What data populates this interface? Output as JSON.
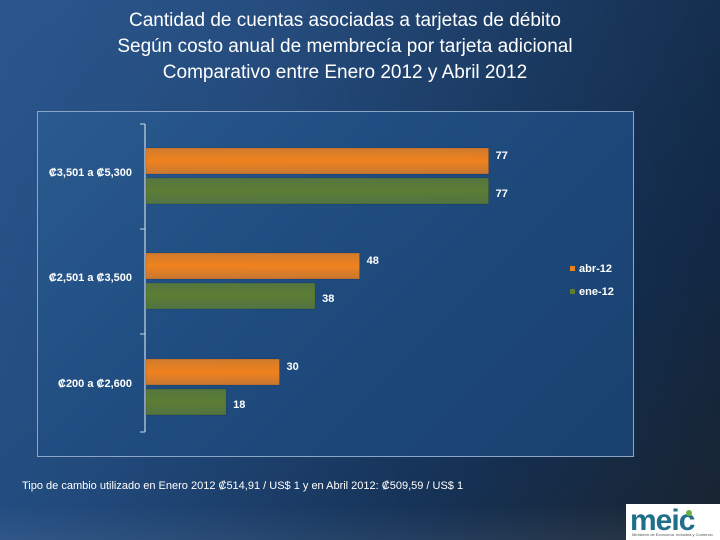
{
  "title": {
    "line1": "Cantidad de cuentas asociadas a tarjetas de débito",
    "line2": "Según costo anual de membrecía por tarjeta adicional",
    "line3": "Comparativo entre  Enero  2012 y Abril 2012"
  },
  "footnote": "Tipo de cambio utilizado en  Enero 2012  ₡514,91 / US$ 1 y en Abril 2012: ₡509,59 / US$ 1",
  "logo": {
    "text": "meic",
    "subtitle": "Ministerio de Economía, Industria y Comercio"
  },
  "colors": {
    "abr": "#f0821e",
    "ene": "#5d7d34",
    "axis": "#c9d6e6"
  },
  "chart_data": {
    "type": "bar",
    "orientation": "horizontal",
    "categories": [
      "₡3,501 a ₡5,300",
      "₡2,501 a ₡3,500",
      "₡200 a ₡2,600"
    ],
    "series": [
      {
        "name": "abr-12",
        "values": [
          77,
          48,
          30
        ]
      },
      {
        "name": "ene-12",
        "values": [
          77,
          38,
          18
        ]
      }
    ],
    "xlim": [
      0,
      80
    ],
    "legend": "right",
    "grid": false
  }
}
